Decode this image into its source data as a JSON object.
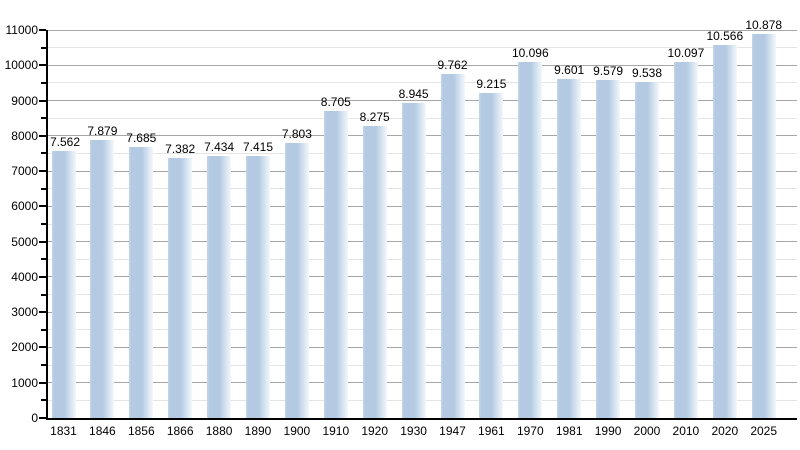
{
  "chart_data": {
    "type": "bar",
    "title": "",
    "xlabel": "",
    "ylabel": "",
    "categories": [
      "1831",
      "1846",
      "1856",
      "1866",
      "1880",
      "1890",
      "1900",
      "1910",
      "1920",
      "1930",
      "1947",
      "1961",
      "1970",
      "1981",
      "1990",
      "2000",
      "2010",
      "2020",
      "2025"
    ],
    "values": [
      7562,
      7879,
      7685,
      7382,
      7434,
      7415,
      7803,
      8705,
      8275,
      8945,
      9762,
      9215,
      10096,
      9601,
      9579,
      9538,
      10097,
      10566,
      10878
    ],
    "value_labels": [
      "7.562",
      "7.879",
      "7.685",
      "7.382",
      "7.434",
      "7.415",
      "7.803",
      "8.705",
      "8.275",
      "8.945",
      "9.762",
      "9.215",
      "10.096",
      "9.601",
      "9.579",
      "9.538",
      "10.097",
      "10.566",
      "10.878"
    ],
    "ylim": [
      0,
      11000
    ],
    "ytick_interval": 1000,
    "minor_ytick_interval": 500,
    "ytick_labels": [
      "0",
      "1000",
      "2000",
      "3000",
      "4000",
      "5000",
      "6000",
      "7000",
      "8000",
      "9000",
      "10000",
      "11000"
    ],
    "grid": "horizontal, major and minor, on",
    "legend": "none",
    "colors": {
      "bar_fill": "#b3cae2",
      "bar_fade": "#f3f8fc",
      "major_grid": "#a6a6a6",
      "minor_grid": "#e4e4e4",
      "axis": "#000000",
      "text": "#000000",
      "background": "#ffffff"
    }
  }
}
